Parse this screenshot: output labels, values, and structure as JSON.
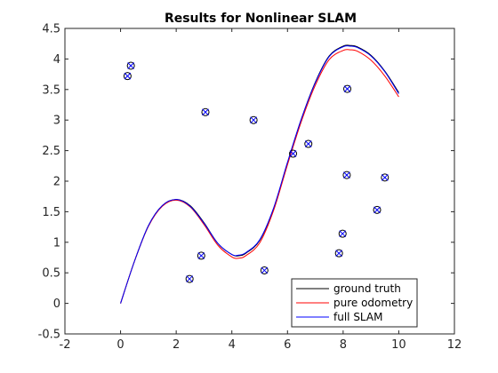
{
  "chart_data": {
    "type": "line",
    "title": "Results for Nonlinear SLAM",
    "xlabel": "",
    "ylabel": "",
    "xlim": [
      -2,
      12
    ],
    "ylim": [
      -0.5,
      4.5
    ],
    "xticks": [
      -2,
      0,
      2,
      4,
      6,
      8,
      10,
      12
    ],
    "yticks": [
      -0.5,
      0,
      0.5,
      1,
      1.5,
      2,
      2.5,
      3,
      3.5,
      4,
      4.5
    ],
    "grid": false,
    "legend_position": "bottom-right",
    "series": [
      {
        "name": "ground truth",
        "color": "#000000",
        "x": [
          0,
          0.5,
          1,
          1.5,
          2,
          2.5,
          3,
          3.5,
          4,
          4.25,
          4.5,
          5,
          5.5,
          6,
          6.5,
          7,
          7.5,
          8,
          8.25,
          8.5,
          9,
          9.5,
          10
        ],
        "y": [
          0,
          0.69,
          1.27,
          1.6,
          1.7,
          1.6,
          1.32,
          0.98,
          0.8,
          0.78,
          0.82,
          1.03,
          1.55,
          2.3,
          3.02,
          3.62,
          4.05,
          4.21,
          4.22,
          4.2,
          4.06,
          3.8,
          3.45
        ]
      },
      {
        "name": "pure odometry",
        "color": "#ff0000",
        "x": [
          0,
          0.5,
          1,
          1.5,
          2,
          2.5,
          3,
          3.5,
          4,
          4.25,
          4.5,
          5,
          5.5,
          6,
          6.5,
          7,
          7.5,
          8,
          8.25,
          8.5,
          9,
          9.5,
          10
        ],
        "y": [
          0,
          0.69,
          1.26,
          1.59,
          1.69,
          1.58,
          1.29,
          0.95,
          0.76,
          0.74,
          0.78,
          0.99,
          1.52,
          2.27,
          2.98,
          3.57,
          3.99,
          4.14,
          4.15,
          4.13,
          3.98,
          3.72,
          3.38
        ]
      },
      {
        "name": "full SLAM",
        "color": "#0000ff",
        "x": [
          0,
          0.5,
          1,
          1.5,
          2,
          2.5,
          3,
          3.5,
          4,
          4.25,
          4.5,
          5,
          5.5,
          6,
          6.5,
          7,
          7.5,
          8,
          8.25,
          8.5,
          9,
          9.5,
          10
        ],
        "y": [
          0,
          0.69,
          1.27,
          1.6,
          1.7,
          1.59,
          1.31,
          0.98,
          0.8,
          0.79,
          0.83,
          1.04,
          1.56,
          2.31,
          3.02,
          3.61,
          4.04,
          4.2,
          4.21,
          4.19,
          4.05,
          3.79,
          3.43
        ]
      }
    ],
    "landmarks": {
      "true_marker": "o",
      "estimate_marker": "x",
      "color": "#000000",
      "estimate_color": "#0000ff",
      "points": [
        {
          "x": 0.25,
          "y": 3.72
        },
        {
          "x": 0.37,
          "y": 3.89
        },
        {
          "x": 2.48,
          "y": 0.4
        },
        {
          "x": 2.9,
          "y": 0.78
        },
        {
          "x": 3.05,
          "y": 3.13
        },
        {
          "x": 4.78,
          "y": 3.0
        },
        {
          "x": 5.17,
          "y": 0.54
        },
        {
          "x": 6.2,
          "y": 2.45
        },
        {
          "x": 6.75,
          "y": 2.61
        },
        {
          "x": 7.85,
          "y": 0.82
        },
        {
          "x": 7.98,
          "y": 1.14
        },
        {
          "x": 8.13,
          "y": 2.1
        },
        {
          "x": 8.15,
          "y": 3.51
        },
        {
          "x": 9.22,
          "y": 1.53
        },
        {
          "x": 9.5,
          "y": 2.06
        }
      ]
    }
  }
}
